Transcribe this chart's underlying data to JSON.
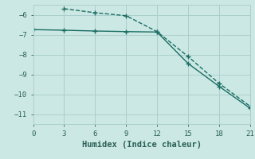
{
  "xlabel": "Humidex (Indice chaleur)",
  "ylabel": "",
  "bg_color": "#cce8e4",
  "line_color": "#1a6e64",
  "grid_color": "#aacfcc",
  "line1_x": [
    3,
    6,
    9,
    12,
    15,
    18,
    21
  ],
  "line1_y": [
    -5.7,
    -5.9,
    -6.05,
    -6.85,
    -8.1,
    -9.45,
    -10.6
  ],
  "line2_x": [
    0,
    3,
    6,
    9,
    12,
    15,
    18,
    21
  ],
  "line2_y": [
    -6.75,
    -6.78,
    -6.82,
    -6.85,
    -6.87,
    -8.45,
    -9.6,
    -10.7
  ],
  "xlim": [
    0,
    21
  ],
  "ylim": [
    -11.5,
    -5.5
  ],
  "xticks": [
    0,
    3,
    6,
    9,
    12,
    15,
    18,
    21
  ],
  "yticks": [
    -11,
    -10,
    -9,
    -8,
    -7,
    -6
  ],
  "markersize": 3,
  "linewidth": 1.0,
  "font_color": "#2a6058",
  "tick_fontsize": 6.5,
  "label_fontsize": 7.5
}
